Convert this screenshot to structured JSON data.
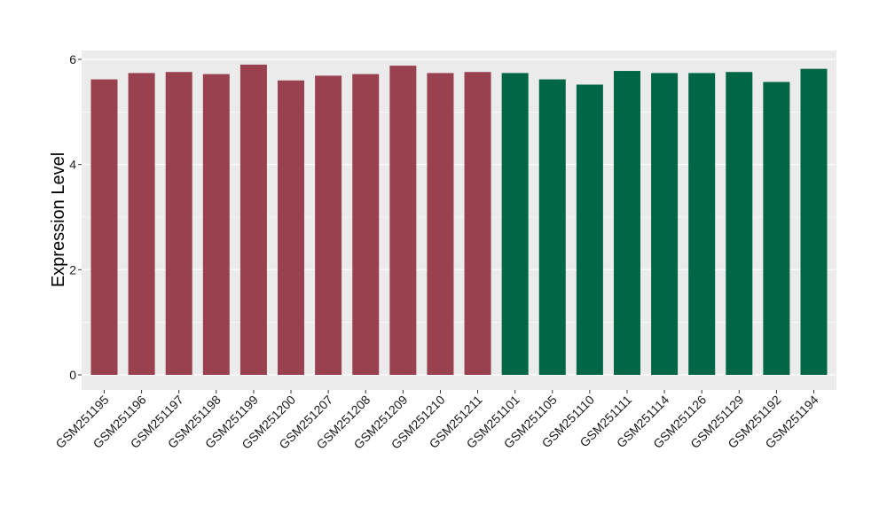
{
  "chart_data": {
    "type": "bar",
    "title": "",
    "xlabel": "",
    "ylabel": "Expression Level",
    "ylim": [
      0,
      6.2
    ],
    "yticks": [
      0,
      2,
      4,
      6
    ],
    "grid": true,
    "categories": [
      "GSM251195",
      "GSM251196",
      "GSM251197",
      "GSM251198",
      "GSM251199",
      "GSM251200",
      "GSM251207",
      "GSM251208",
      "GSM251209",
      "GSM251210",
      "GSM251211",
      "GSM251101",
      "GSM251105",
      "GSM251110",
      "GSM251111",
      "GSM251114",
      "GSM251126",
      "GSM251129",
      "GSM251192",
      "GSM251194"
    ],
    "values": [
      5.62,
      5.74,
      5.76,
      5.72,
      5.9,
      5.6,
      5.69,
      5.72,
      5.88,
      5.74,
      5.76,
      5.74,
      5.62,
      5.52,
      5.78,
      5.74,
      5.74,
      5.76,
      5.57,
      5.82
    ],
    "bar_colors": [
      "#9a4150",
      "#9a4150",
      "#9a4150",
      "#9a4150",
      "#9a4150",
      "#9a4150",
      "#9a4150",
      "#9a4150",
      "#9a4150",
      "#9a4150",
      "#9a4150",
      "#006646",
      "#006646",
      "#006646",
      "#006646",
      "#006646",
      "#006646",
      "#006646",
      "#006646",
      "#006646"
    ],
    "panel_background": "#ebebeb",
    "grid_color": "#ffffff"
  }
}
